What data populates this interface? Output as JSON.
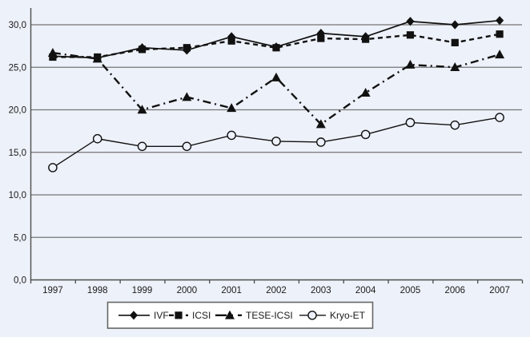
{
  "figure": {
    "background_color": "#edf1f9",
    "series_color": "#111111",
    "grid_color": "#757575",
    "axis_color": "#4d4d4d",
    "legend_fill": "#ffffff",
    "legend_border": "#666666"
  },
  "chart_data": {
    "type": "line",
    "title": "",
    "xlabel": "",
    "ylabel": "",
    "categories": [
      "1997",
      "1998",
      "1999",
      "2000",
      "2001",
      "2002",
      "2003",
      "2004",
      "2005",
      "2006",
      "2007"
    ],
    "series": [
      {
        "name": "IVF",
        "marker": "diamond",
        "line_style": "solid",
        "values": [
          26.3,
          26.1,
          27.3,
          27.0,
          28.6,
          27.4,
          29.0,
          28.6,
          30.4,
          30.0,
          30.5
        ]
      },
      {
        "name": "ICSI",
        "marker": "square",
        "line_style": "dashed",
        "values": [
          26.2,
          26.2,
          27.1,
          27.3,
          28.1,
          27.3,
          28.4,
          28.3,
          28.8,
          27.9,
          28.9
        ]
      },
      {
        "name": "TESE-ICSI",
        "marker": "triangle",
        "line_style": "dash-dot",
        "values": [
          26.7,
          26.0,
          20.0,
          21.5,
          20.2,
          23.8,
          18.3,
          22.0,
          25.3,
          25.0,
          26.5
        ]
      },
      {
        "name": "Kryo-ET",
        "marker": "open-circle",
        "line_style": "solid",
        "values": [
          13.2,
          16.6,
          15.7,
          15.7,
          17.0,
          16.3,
          16.2,
          17.1,
          18.5,
          18.2,
          19.1
        ]
      }
    ],
    "y_ticks": [
      "0,0",
      "5,0",
      "10,0",
      "15,0",
      "20,0",
      "25,0",
      "30,0"
    ],
    "y_tick_values": [
      0,
      5,
      10,
      15,
      20,
      25,
      30
    ],
    "ylim": [
      0,
      32
    ],
    "grid": "horizontal",
    "legend_position": "bottom-center"
  }
}
